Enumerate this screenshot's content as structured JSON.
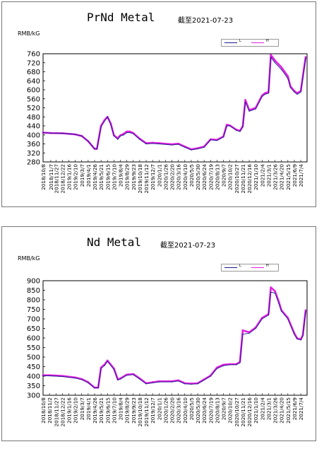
{
  "charts": [
    {
      "title": "PrNd Metal",
      "date_label": "截至2021-07-23",
      "unit": "RMB/kG",
      "legend": [
        {
          "name": "L",
          "color": "#1a1a8c"
        },
        {
          "name": "H",
          "color": "#e020e0"
        }
      ]
    },
    {
      "title": "Nd Metal",
      "date_label": "截至2021-07-23",
      "unit": "RMB/kG",
      "legend": [
        {
          "name": "L",
          "color": "#1a1a8c"
        },
        {
          "name": "H",
          "color": "#e020e0"
        }
      ]
    }
  ],
  "chart_data": [
    {
      "type": "line",
      "title": "PrNd Metal",
      "ylabel": "RMB/kG",
      "ylim": [
        280,
        760
      ],
      "yticks": [
        280,
        320,
        360,
        400,
        440,
        480,
        520,
        560,
        600,
        640,
        680,
        720,
        760
      ],
      "grid": false,
      "legend_position": "top-right",
      "xticks": [
        "2018/10/8",
        "2018/11/7",
        "2018/11/27",
        "2018/12/22",
        "2019/1/16",
        "2019/2/10",
        "2019/3/7",
        "2019/4/1",
        "2019/4/26",
        "2019/5/21",
        "2019/6/15",
        "2019/7/10",
        "2019/8/4",
        "2019/8/29",
        "2019/9/23",
        "2019/10/18",
        "2019/11/12",
        "2019/12/7",
        "2020/1/1",
        "2020/1/26",
        "2020/2/20",
        "2020/3/16",
        "2020/4/10",
        "2020/5/5",
        "2020/5/30",
        "2020/6/24",
        "2020/7/19",
        "2020/8/13",
        "2020/9/7",
        "2020/10/2",
        "2020/10/27",
        "2020/11/21",
        "2020/12/16",
        "2021/1/10",
        "2021/2/4",
        "2021/3/1",
        "2021/3/26",
        "2021/4/20",
        "2021/5/15",
        "2021/6/9",
        "2021/7/4"
      ],
      "x": [
        "2018/10/8",
        "2018/11/7",
        "2018/12/22",
        "2019/2/10",
        "2019/3/7",
        "2019/4/1",
        "2019/4/26",
        "2019/5/5",
        "2019/5/21",
        "2019/6/3",
        "2019/6/15",
        "2019/6/28",
        "2019/7/10",
        "2019/7/25",
        "2019/8/4",
        "2019/8/17",
        "2019/8/29",
        "2019/9/10",
        "2019/9/23",
        "2019/10/18",
        "2019/11/12",
        "2019/12/7",
        "2020/1/1",
        "2020/2/20",
        "2020/3/16",
        "2020/4/10",
        "2020/5/5",
        "2020/5/30",
        "2020/6/24",
        "2020/7/19",
        "2020/8/13",
        "2020/9/7",
        "2020/9/20",
        "2020/10/2",
        "2020/10/27",
        "2020/11/10",
        "2020/11/21",
        "2020/12/1",
        "2020/12/16",
        "2021/1/10",
        "2021/2/4",
        "2021/2/15",
        "2021/3/1",
        "2021/3/10",
        "2021/3/26",
        "2021/4/20",
        "2021/5/15",
        "2021/5/25",
        "2021/6/9",
        "2021/6/20",
        "2021/7/4",
        "2021/7/12",
        "2021/7/23"
      ],
      "series": [
        {
          "name": "L",
          "values": [
            410,
            408,
            407,
            402,
            395,
            372,
            338,
            338,
            435,
            460,
            480,
            445,
            395,
            380,
            395,
            400,
            410,
            410,
            405,
            380,
            360,
            362,
            360,
            355,
            358,
            345,
            333,
            338,
            345,
            378,
            375,
            390,
            440,
            440,
            420,
            415,
            435,
            545,
            505,
            515,
            570,
            580,
            585,
            745,
            720,
            690,
            650,
            610,
            590,
            580,
            590,
            650,
            740
          ]
        },
        {
          "name": "H",
          "values": [
            410,
            408,
            407,
            402,
            395,
            372,
            338,
            338,
            440,
            465,
            480,
            450,
            398,
            385,
            398,
            405,
            415,
            415,
            408,
            383,
            363,
            365,
            363,
            358,
            361,
            348,
            336,
            341,
            348,
            380,
            378,
            393,
            445,
            442,
            423,
            418,
            438,
            555,
            510,
            520,
            575,
            585,
            590,
            755,
            730,
            700,
            660,
            615,
            595,
            585,
            595,
            660,
            745
          ]
        }
      ]
    },
    {
      "type": "line",
      "title": "Nd Metal",
      "ylabel": "RMB/kG",
      "ylim": [
        300,
        900
      ],
      "yticks": [
        300,
        350,
        400,
        450,
        500,
        550,
        600,
        650,
        700,
        750,
        800,
        850,
        900
      ],
      "grid": false,
      "legend_position": "top-right",
      "xticks": [
        "2018/10/8",
        "2018/11/2",
        "2018/11/27",
        "2018/12/22",
        "2019/1/16",
        "2019/2/10",
        "2019/3/7",
        "2019/4/1",
        "2019/4/26",
        "2019/5/21",
        "2019/6/15",
        "2019/7/10",
        "2019/8/4",
        "2019/8/29",
        "2019/9/23",
        "2019/10/18",
        "2019/11/12",
        "2019/12/7",
        "2020/1/1",
        "2020/1/26",
        "2020/2/20",
        "2020/3/16",
        "2020/4/10",
        "2020/5/5",
        "2020/5/30",
        "2020/6/24",
        "2020/7/19",
        "2020/8/13",
        "2020/9/7",
        "2020/10/2",
        "2020/10/27",
        "2020/11/21",
        "2020/12/16",
        "2021/1/10",
        "2021/2/4",
        "2021/3/1",
        "2021/3/26",
        "2021/4/20",
        "2021/5/15",
        "2021/6/9",
        "2021/7/4"
      ],
      "x": [
        "2018/10/8",
        "2018/11/2",
        "2018/12/22",
        "2019/2/10",
        "2019/3/7",
        "2019/4/1",
        "2019/4/26",
        "2019/5/10",
        "2019/5/21",
        "2019/6/3",
        "2019/6/15",
        "2019/7/10",
        "2019/7/25",
        "2019/8/4",
        "2019/8/29",
        "2019/9/23",
        "2019/10/18",
        "2019/11/12",
        "2019/12/7",
        "2020/1/1",
        "2020/2/20",
        "2020/3/16",
        "2020/4/10",
        "2020/5/5",
        "2020/5/30",
        "2020/6/24",
        "2020/7/19",
        "2020/8/13",
        "2020/9/7",
        "2020/10/2",
        "2020/10/27",
        "2020/11/10",
        "2020/11/21",
        "2020/12/16",
        "2021/1/10",
        "2021/2/4",
        "2021/3/1",
        "2021/3/10",
        "2021/3/26",
        "2021/4/10",
        "2021/4/20",
        "2021/5/15",
        "2021/6/9",
        "2021/6/20",
        "2021/7/4",
        "2021/7/12",
        "2021/7/23"
      ],
      "series": [
        {
          "name": "L",
          "values": [
            402,
            402,
            398,
            390,
            382,
            365,
            338,
            338,
            440,
            455,
            478,
            435,
            380,
            385,
            405,
            408,
            385,
            360,
            365,
            370,
            370,
            375,
            360,
            358,
            360,
            380,
            400,
            440,
            455,
            460,
            460,
            470,
            620,
            625,
            650,
            700,
            720,
            840,
            835,
            780,
            740,
            700,
            620,
            595,
            590,
            610,
            740
          ]
        },
        {
          "name": "H",
          "values": [
            405,
            405,
            401,
            393,
            385,
            368,
            340,
            340,
            445,
            460,
            482,
            440,
            383,
            388,
            408,
            411,
            388,
            363,
            368,
            373,
            373,
            378,
            363,
            361,
            363,
            383,
            403,
            445,
            460,
            463,
            463,
            475,
            640,
            630,
            655,
            705,
            725,
            865,
            845,
            790,
            745,
            705,
            625,
            598,
            593,
            615,
            745
          ]
        }
      ]
    }
  ]
}
